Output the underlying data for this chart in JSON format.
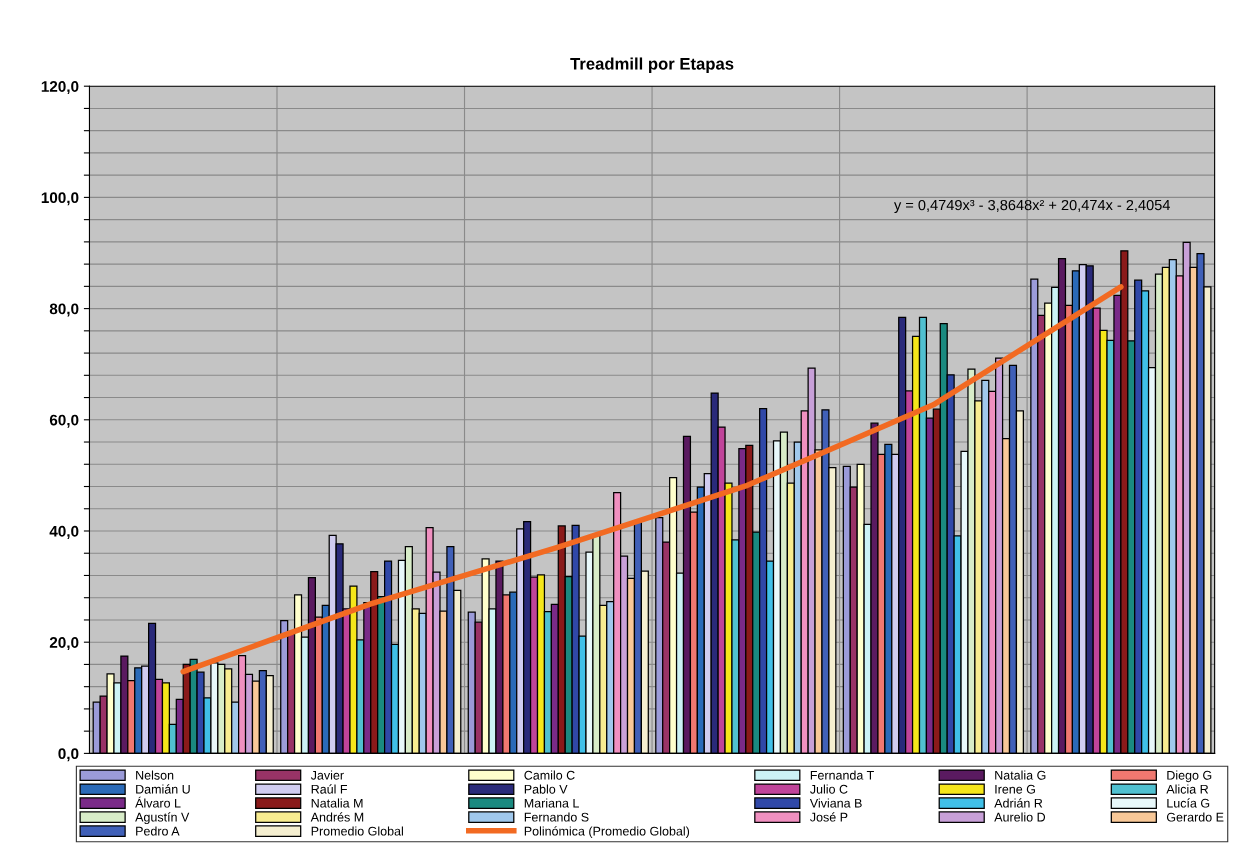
{
  "chart_data": {
    "type": "bar",
    "title": "Treadmill por Etapas",
    "categories": [
      null,
      null,
      null,
      null,
      null,
      null
    ],
    "ylim": [
      0,
      120
    ],
    "yticks": [
      {
        "value": 0,
        "label": "0,0"
      },
      {
        "value": 4,
        "label": null
      },
      {
        "value": 8,
        "label": null
      },
      {
        "value": 12,
        "label": null
      },
      {
        "value": 16,
        "label": null
      },
      {
        "value": 20,
        "label": "20,0"
      },
      {
        "value": 24,
        "label": null
      },
      {
        "value": 28,
        "label": null
      },
      {
        "value": 32,
        "label": null
      },
      {
        "value": 36,
        "label": null
      },
      {
        "value": 40,
        "label": "40,0"
      },
      {
        "value": 44,
        "label": null
      },
      {
        "value": 48,
        "label": null
      },
      {
        "value": 52,
        "label": null
      },
      {
        "value": 56,
        "label": null
      },
      {
        "value": 60,
        "label": "60,0"
      },
      {
        "value": 64,
        "label": null
      },
      {
        "value": 68,
        "label": null
      },
      {
        "value": 72,
        "label": null
      },
      {
        "value": 76,
        "label": null
      },
      {
        "value": 80,
        "label": "80,0"
      },
      {
        "value": 84,
        "label": null
      },
      {
        "value": 88,
        "label": null
      },
      {
        "value": 92,
        "label": null
      },
      {
        "value": 96,
        "label": null
      },
      {
        "value": 100,
        "label": "100,0"
      },
      {
        "value": 104,
        "label": null
      },
      {
        "value": 108,
        "label": null
      },
      {
        "value": 112,
        "label": null
      },
      {
        "value": 116,
        "label": null
      },
      {
        "value": 120,
        "label": "120,0"
      }
    ],
    "tick_labels": "y",
    "grid": true,
    "legend": "bottom",
    "series": [
      {
        "name": "Nelson",
        "color": "#9b9bd9",
        "values": [
          9.2,
          23.9,
          25.4,
          42.4,
          51.6,
          85.3
        ]
      },
      {
        "name": "Javier",
        "color": "#993366",
        "values": [
          10.3,
          21.5,
          23.6,
          38.0,
          47.9,
          78.8
        ]
      },
      {
        "name": "Camilo C",
        "color": "#ffffcc",
        "values": [
          14.3,
          28.5,
          35.0,
          49.6,
          52.0,
          81.0
        ]
      },
      {
        "name": "Fernanda T",
        "color": "#ccf2f5",
        "values": [
          12.7,
          20.9,
          26.0,
          32.4,
          41.2,
          83.8
        ]
      },
      {
        "name": "Natalia G",
        "color": "#5a1a60",
        "values": [
          17.5,
          31.6,
          34.6,
          57.0,
          59.4,
          89.0
        ]
      },
      {
        "name": "Diego G",
        "color": "#f07870",
        "values": [
          13.1,
          24.5,
          28.5,
          43.4,
          53.8,
          80.6
        ]
      },
      {
        "name": "Damián U",
        "color": "#2a6ab8",
        "values": [
          15.4,
          26.6,
          29.0,
          47.9,
          55.6,
          86.8
        ]
      },
      {
        "name": "Raúl F",
        "color": "#d0ccf0",
        "values": [
          15.7,
          39.2,
          40.4,
          50.3,
          53.8,
          87.9
        ]
      },
      {
        "name": "Pablo V",
        "color": "#2a2a7a",
        "values": [
          23.4,
          37.7,
          41.7,
          64.8,
          78.4,
          87.7
        ]
      },
      {
        "name": "Julio C",
        "color": "#c0449a",
        "values": [
          13.3,
          26.0,
          31.7,
          58.7,
          65.2,
          80.1
        ]
      },
      {
        "name": "Irene G",
        "color": "#f5e61a",
        "values": [
          12.7,
          30.1,
          32.1,
          48.6,
          75.0,
          76.1
        ]
      },
      {
        "name": "Alicia R",
        "color": "#50c0d0",
        "values": [
          5.2,
          20.4,
          25.5,
          38.4,
          78.4,
          74.3
        ]
      },
      {
        "name": "Álvaro L",
        "color": "#7a2a88",
        "values": [
          9.7,
          27.1,
          26.8,
          54.8,
          60.3,
          82.4
        ]
      },
      {
        "name": "Natalia M",
        "color": "#8a1a1a",
        "values": [
          16.0,
          32.7,
          40.9,
          55.4,
          61.9,
          90.4
        ]
      },
      {
        "name": "Mariana L",
        "color": "#1a8a80",
        "values": [
          16.9,
          28.2,
          31.8,
          39.8,
          77.3,
          74.2
        ]
      },
      {
        "name": "Viviana B",
        "color": "#3048a8",
        "values": [
          14.6,
          34.6,
          41.0,
          62.0,
          68.1,
          85.1
        ]
      },
      {
        "name": "Adrián R",
        "color": "#40c0e8",
        "values": [
          10.0,
          19.6,
          21.1,
          34.6,
          39.1,
          83.2
        ]
      },
      {
        "name": "Lucía G",
        "color": "#e8f8fa",
        "values": [
          16.3,
          34.7,
          36.2,
          56.2,
          54.3,
          69.4
        ]
      },
      {
        "name": "Agustín V",
        "color": "#d8ecc8",
        "values": [
          16.0,
          37.2,
          39.4,
          57.8,
          69.1,
          86.2
        ]
      },
      {
        "name": "Andrés M",
        "color": "#f8ec90",
        "values": [
          15.2,
          26.0,
          26.6,
          48.6,
          63.4,
          87.4
        ]
      },
      {
        "name": "Fernando S",
        "color": "#a0c8ec",
        "values": [
          9.2,
          25.2,
          27.3,
          56.0,
          67.1,
          88.8
        ]
      },
      {
        "name": "José P",
        "color": "#f090c0",
        "values": [
          17.6,
          40.6,
          46.9,
          61.6,
          65.1,
          85.9
        ]
      },
      {
        "name": "Aurelio D",
        "color": "#c8a0d8",
        "values": [
          14.2,
          32.6,
          35.5,
          69.3,
          71.1,
          91.9
        ]
      },
      {
        "name": "Gerardo E",
        "color": "#f8c898",
        "values": [
          13.0,
          25.6,
          31.5,
          54.6,
          56.6,
          87.4
        ]
      },
      {
        "name": "Pedro A",
        "color": "#4060b8",
        "values": [
          14.9,
          37.2,
          41.8,
          61.8,
          69.8,
          89.9
        ]
      },
      {
        "name": "Promedio Global",
        "color": "#f5efd0",
        "values": [
          14.0,
          29.3,
          32.8,
          51.4,
          61.6,
          83.9
        ]
      },
      {
        "name": "Polinómica (Promedio Global)",
        "type": "line",
        "color": "#f26a22",
        "values": [
          14.7,
          26.9,
          37.1,
          48.1,
          62.7,
          83.9
        ]
      }
    ],
    "annotations": [
      "y = 0,4749x³ - 3,8648x² + 20,474x - 2,4054"
    ]
  }
}
